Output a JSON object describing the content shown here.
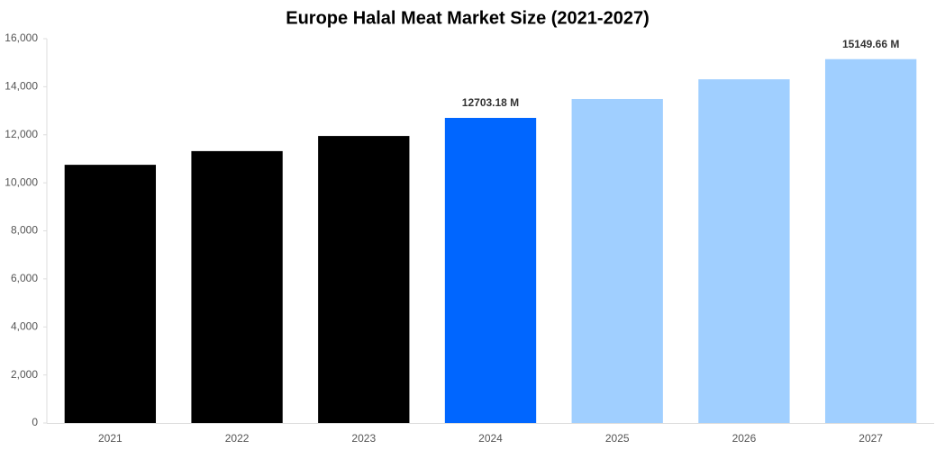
{
  "chart_data": {
    "type": "bar",
    "title": "Europe Halal Meat Market Size (2021-2027)",
    "categories": [
      "2021",
      "2022",
      "2023",
      "2024",
      "2025",
      "2026",
      "2027"
    ],
    "values": [
      10750,
      11320,
      11950,
      12703.18,
      13490,
      14310,
      15149.66
    ],
    "value_labels": [
      null,
      null,
      null,
      "12703.18 M",
      null,
      null,
      "15149.66 M"
    ],
    "colors": [
      "#000000",
      "#000000",
      "#000000",
      "#0066ff",
      "#a0cfff",
      "#a0cfff",
      "#a0cfff"
    ],
    "ylim": [
      0,
      16000
    ],
    "yticks": [
      0,
      {
        "value": 2000,
        "label": "2,000"
      },
      {
        "value": 4000,
        "label": "4,000"
      },
      {
        "value": 6000,
        "label": "6,000"
      },
      {
        "value": 8000,
        "label": "8,000"
      },
      {
        "value": 10000,
        "label": "10,000"
      },
      {
        "value": 12000,
        "label": "12,000"
      },
      {
        "value": 14000,
        "label": "14,000"
      },
      {
        "value": 16000,
        "label": "16,000"
      }
    ],
    "grid": false
  }
}
